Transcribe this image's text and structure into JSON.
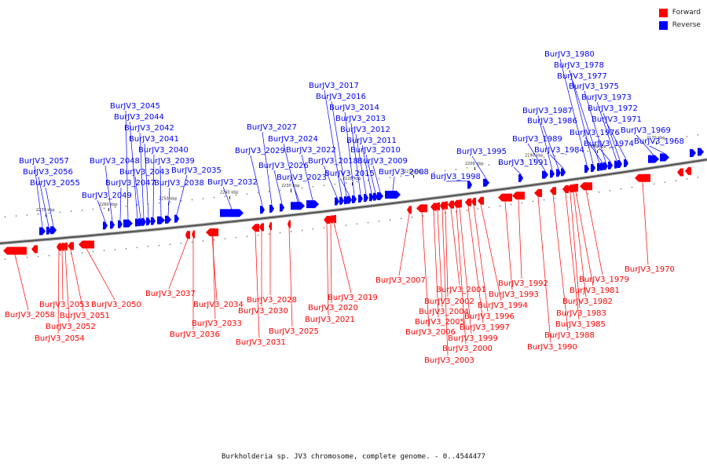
{
  "legend": [
    {
      "label": "Forward",
      "color": "#ff0000"
    },
    {
      "label": "Reverse",
      "color": "#0000ff"
    }
  ],
  "caption": "Burkholderia sp. JV3 chromosome, complete genome. - 0..4544477",
  "colors": {
    "forward": "#ff0000",
    "reverse": "#0000ff",
    "backbone": "#555555"
  },
  "scale_ticks": [
    "2270 kbp",
    "2260 kbp",
    "2250 kbp",
    "2240 kbp",
    "2230 kbp",
    "2220 kbp",
    "2210 kbp",
    "2200 kbp",
    "2190 kbp",
    "2180 kbp",
    "2170 kbp"
  ],
  "reverse_genes": [
    "BurJV3_2057",
    "BurJV3_2056",
    "BurJV3_2055",
    "BurJV3_2049",
    "BurJV3_2048",
    "BurJV3_2047",
    "BurJV3_2045",
    "BurJV3_2044",
    "BurJV3_2043",
    "BurJV3_2042",
    "BurJV3_2041",
    "BurJV3_2040",
    "BurJV3_2039",
    "BurJV3_2038",
    "BurJV3_2035",
    "BurJV3_2032",
    "BurJV3_2029",
    "BurJV3_2027",
    "BurJV3_2026",
    "BurJV3_2024",
    "BurJV3_2023",
    "BurJV3_2022",
    "BurJV3_2018",
    "BurJV3_2017",
    "BurJV3_2016",
    "BurJV3_2015",
    "BurJV3_2014",
    "BurJV3_2013",
    "BurJV3_2012",
    "BurJV3_2011",
    "BurJV3_2010",
    "BurJV3_2009",
    "BurJV3_2008",
    "BurJV3_1998",
    "BurJV3_1995",
    "BurJV3_1991",
    "BurJV3_1989",
    "BurJV3_1987",
    "BurJV3_1986",
    "BurJV3_1984",
    "BurJV3_1980",
    "BurJV3_1978",
    "BurJV3_1977",
    "BurJV3_1976",
    "BurJV3_1975",
    "BurJV3_1974",
    "BurJV3_1973",
    "BurJV3_1972",
    "BurJV3_1971",
    "BurJV3_1969",
    "BurJV3_1968"
  ],
  "forward_genes": [
    "BurJV3_2058",
    "BurJV3_2054",
    "BurJV3_2053",
    "BurJV3_2052",
    "BurJV3_2051",
    "BurJV3_2050",
    "BurJV3_2037",
    "BurJV3_2036",
    "BurJV3_2034",
    "BurJV3_2033",
    "BurJV3_2031",
    "BurJV3_2030",
    "BurJV3_2028",
    "BurJV3_2025",
    "BurJV3_2021",
    "BurJV3_2020",
    "BurJV3_2019",
    "BurJV3_2007",
    "BurJV3_2006",
    "BurJV3_2005",
    "BurJV3_2004",
    "BurJV3_2003",
    "BurJV3_2002",
    "BurJV3_2001",
    "BurJV3_2000",
    "BurJV3_1999",
    "BurJV3_1997",
    "BurJV3_1996",
    "BurJV3_1994",
    "BurJV3_1993",
    "BurJV3_1992",
    "BurJV3_1990",
    "BurJV3_1988",
    "BurJV3_1985",
    "BurJV3_1983",
    "BurJV3_1982",
    "BurJV3_1981",
    "BurJV3_1979",
    "BurJV3_1970"
  ]
}
